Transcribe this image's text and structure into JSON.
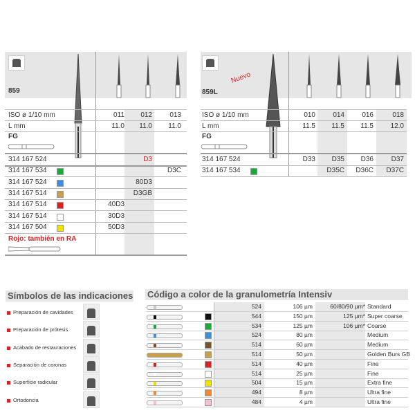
{
  "left": {
    "code": "859",
    "iso_label": "ISO ø 1/10 mm",
    "l_label": "L mm",
    "shank": "FG",
    "iso": [
      "011",
      "012",
      "013"
    ],
    "l": [
      "11.0",
      "11.0",
      "11.0"
    ],
    "rows": [
      {
        "ref": "314 167 524",
        "color": null,
        "cells": [
          "",
          "D3",
          ""
        ],
        "red": true
      },
      {
        "ref": "314 167 534",
        "color": "#1aaa3a",
        "cells": [
          "",
          "",
          "D3C"
        ]
      },
      {
        "ref": "314 167 524",
        "color": "#3a8fe0",
        "cells": [
          "",
          "80D3",
          ""
        ]
      },
      {
        "ref": "314 167 514",
        "color": "#c9a04a",
        "cells": [
          "",
          "D3GB",
          ""
        ]
      },
      {
        "ref": "314 167 514",
        "color": "#e02020",
        "cells": [
          "40D3",
          "",
          ""
        ]
      },
      {
        "ref": "314 167 514",
        "color": "#ffffff",
        "cells": [
          "30D3",
          "",
          ""
        ]
      },
      {
        "ref": "314 167 504",
        "color": "#f2e000",
        "cells": [
          "50D3",
          "",
          ""
        ]
      }
    ],
    "note": "Rojo: también en RA"
  },
  "right": {
    "code": "859L",
    "badge": "Nuevo",
    "iso_label": "ISO ø 1/10 mm",
    "l_label": "L mm",
    "shank": "FG",
    "iso": [
      "010",
      "014",
      "016",
      "018"
    ],
    "l": [
      "11.5",
      "11.5",
      "11.5",
      "12.0"
    ],
    "rows": [
      {
        "ref": "314 167 524",
        "color": null,
        "cells": [
          "D33",
          "D35",
          "D36",
          "D37"
        ]
      },
      {
        "ref": "314 167 534",
        "color": "#1aaa3a",
        "cells": [
          "",
          "D35C",
          "D36C",
          "D37C"
        ]
      }
    ]
  },
  "symbols": {
    "title": "Símbolos de las indicaciones",
    "items": [
      "Preparación de cavidades",
      "Preparación de prótesis",
      "Acabado de restauraciones",
      "Separación de coronas",
      "Superficie radicular",
      "Ortodoncia"
    ]
  },
  "grit": {
    "title": "Código a color de la granulometría Intensiv",
    "rows": [
      {
        "color": null,
        "code": "524",
        "size": "106 µm",
        "alt": "60/80/90 µm*",
        "name": "Standard"
      },
      {
        "color": "#111111",
        "code": "544",
        "size": "150 µm",
        "alt": "125 µm*",
        "name": "Super coarse"
      },
      {
        "color": "#1aaa3a",
        "code": "534",
        "size": "125 µm",
        "alt": "106 µm*",
        "name": "Coarse"
      },
      {
        "color": "#3a8fe0",
        "code": "524",
        "size": "80 µm",
        "alt": "",
        "name": "Medium"
      },
      {
        "color": "#7a5230",
        "code": "514",
        "size": "60 µm",
        "alt": "",
        "name": "Medium"
      },
      {
        "color": "#c9a04a",
        "code": "514",
        "size": "50 µm",
        "alt": "",
        "name": "Golden Burs GB"
      },
      {
        "color": "#e02020",
        "code": "514",
        "size": "40 µm",
        "alt": "",
        "name": "Fine"
      },
      {
        "color": "#ffffff",
        "code": "514",
        "size": "25 µm",
        "alt": "",
        "name": "Fine"
      },
      {
        "color": "#f2e000",
        "code": "504",
        "size": "15 µm",
        "alt": "",
        "name": "Extra fine"
      },
      {
        "color": "#f08a30",
        "code": "494",
        "size": "8 µm",
        "alt": "",
        "name": "Ultra fine"
      },
      {
        "color": "#f5c0d0",
        "code": "484",
        "size": "4 µm",
        "alt": "",
        "name": "Ultra fine"
      }
    ]
  }
}
